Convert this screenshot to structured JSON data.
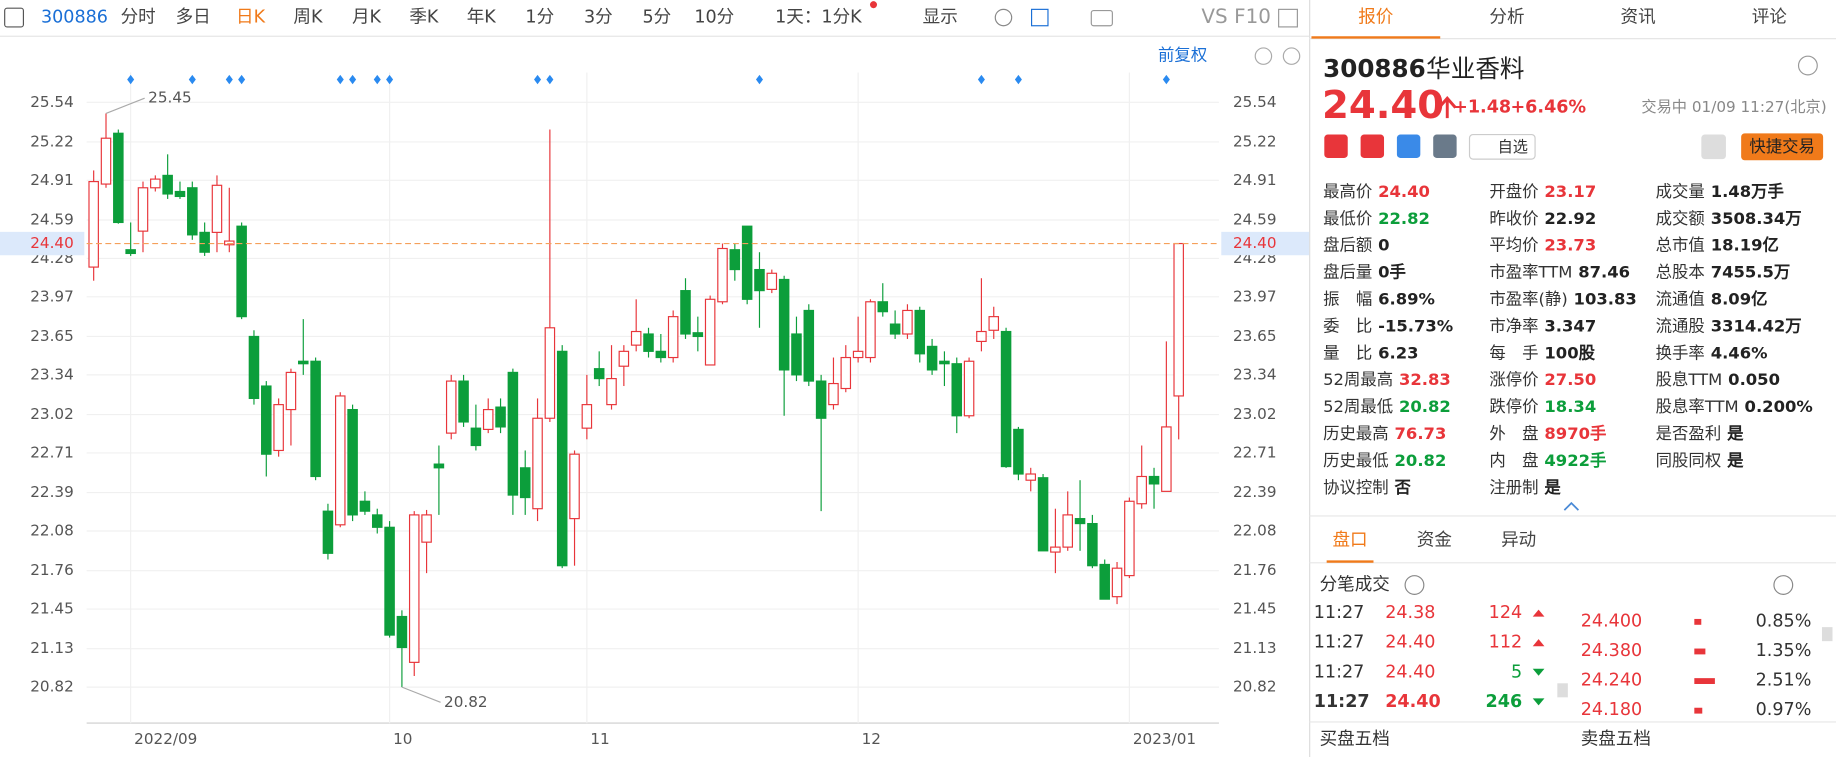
{
  "toolbar": {
    "code": "300886",
    "periods": [
      "分时",
      "多日",
      "日K",
      "周K",
      "月K",
      "季K",
      "年K",
      "1分",
      "3分",
      "5分",
      "10分"
    ],
    "active_period": 2,
    "interval": "1天：1分K",
    "display": "显示",
    "vs": "VS",
    "f10": "F10",
    "adjust": "前复权"
  },
  "chart_data": {
    "type": "candlestick",
    "categories": [
      null,
      null,
      null,
      "2022/09",
      null,
      null,
      null,
      null,
      null,
      null,
      null,
      null,
      null,
      null,
      null,
      null,
      null,
      null,
      null,
      null,
      null,
      null,
      null,
      null,
      "10",
      null,
      null,
      null,
      null,
      null,
      null,
      null,
      null,
      null,
      null,
      null,
      null,
      null,
      null,
      null,
      "11",
      null,
      null,
      null,
      null,
      null,
      null,
      null,
      null,
      null,
      null,
      null,
      null,
      null,
      null,
      null,
      null,
      null,
      null,
      null,
      null,
      null,
      "12",
      null,
      null,
      null,
      null,
      null,
      null,
      null,
      null,
      null,
      null,
      null,
      null,
      null,
      null,
      null,
      null,
      null,
      null,
      null,
      null,
      null,
      "2023/01",
      null,
      null,
      null,
      null
    ],
    "open": [
      24.21,
      24.88,
      25.29,
      24.35,
      24.5,
      24.85,
      24.95,
      24.82,
      24.85,
      24.49,
      24.49,
      24.39,
      24.54,
      23.65,
      23.25,
      22.73,
      23.06,
      23.45,
      23.45,
      22.24,
      22.13,
      23.06,
      22.32,
      22.21,
      22.11,
      21.39,
      21.02,
      21.99,
      22.62,
      22.87,
      23.29,
      22.91,
      22.9,
      23.08,
      23.36,
      22.59,
      22.26,
      22.99,
      23.53,
      22.18,
      22.91,
      23.39,
      23.1,
      23.41,
      23.58,
      23.67,
      23.53,
      23.48,
      24.02,
      23.68,
      23.42,
      23.93,
      24.35,
      24.54,
      24.19,
      24.03,
      24.11,
      23.67,
      23.86,
      23.29,
      23.1,
      23.23,
      23.48,
      23.48,
      23.93,
      23.75,
      23.67,
      23.86,
      23.57,
      23.45,
      23.43,
      23.01,
      23.61,
      23.7,
      23.69,
      22.9,
      22.49,
      22.51,
      21.91,
      21.95,
      22.18,
      22.14,
      21.81,
      21.55,
      21.72,
      22.3,
      22.52,
      22.4,
      23.17
    ],
    "high": [
      24.99,
      25.45,
      25.32,
      24.57,
      24.9,
      24.95,
      25.12,
      24.9,
      24.9,
      24.57,
      24.95,
      24.85,
      24.57,
      23.7,
      23.29,
      23.15,
      23.39,
      23.79,
      23.48,
      22.3,
      23.2,
      23.1,
      22.4,
      22.26,
      22.16,
      21.44,
      22.24,
      22.25,
      22.77,
      23.34,
      23.34,
      23.1,
      23.15,
      23.15,
      23.39,
      22.73,
      23.15,
      25.32,
      23.58,
      22.73,
      23.34,
      23.53,
      23.58,
      23.58,
      23.95,
      23.72,
      23.67,
      23.86,
      24.12,
      23.81,
      23.98,
      24.4,
      24.4,
      24.54,
      24.33,
      24.19,
      24.14,
      23.81,
      23.91,
      23.34,
      23.48,
      23.58,
      23.81,
      23.95,
      24.08,
      23.86,
      23.91,
      23.89,
      23.63,
      23.53,
      23.48,
      23.48,
      24.12,
      23.89,
      23.72,
      22.92,
      22.59,
      22.54,
      22.26,
      22.4,
      22.49,
      22.21,
      21.85,
      21.83,
      22.35,
      22.77,
      22.59,
      23.61,
      24.4
    ],
    "low": [
      24.1,
      24.85,
      24.56,
      24.3,
      24.33,
      24.82,
      24.76,
      24.76,
      24.43,
      24.3,
      24.33,
      24.33,
      23.79,
      23.1,
      22.52,
      22.68,
      22.77,
      23.34,
      22.49,
      21.85,
      22.11,
      22.16,
      22.21,
      22.06,
      21.22,
      20.82,
      20.91,
      21.74,
      22.21,
      22.82,
      22.92,
      22.73,
      22.87,
      22.87,
      22.21,
      22.21,
      22.16,
      22.96,
      21.78,
      21.8,
      22.82,
      23.25,
      23.06,
      23.25,
      23.53,
      23.48,
      23.44,
      23.44,
      23.63,
      23.53,
      23.42,
      23.91,
      24.1,
      23.91,
      23.72,
      24.0,
      23.01,
      23.29,
      23.25,
      22.24,
      23.06,
      23.2,
      23.44,
      23.44,
      23.81,
      23.63,
      23.63,
      23.44,
      23.34,
      23.25,
      22.87,
      22.99,
      23.53,
      23.63,
      22.59,
      22.49,
      22.4,
      21.92,
      21.74,
      21.92,
      21.92,
      21.78,
      21.53,
      21.49,
      21.7,
      22.26,
      22.26,
      22.4,
      22.82
    ],
    "close": [
      24.9,
      25.25,
      24.57,
      24.32,
      24.85,
      24.92,
      24.8,
      24.78,
      24.47,
      24.33,
      24.87,
      24.42,
      23.81,
      23.15,
      22.7,
      23.1,
      23.36,
      23.43,
      22.52,
      21.9,
      23.17,
      22.21,
      22.24,
      22.11,
      21.24,
      21.14,
      22.21,
      22.21,
      22.59,
      23.29,
      22.96,
      22.77,
      23.06,
      22.92,
      22.37,
      22.35,
      22.99,
      23.72,
      21.8,
      22.7,
      23.1,
      23.31,
      23.31,
      23.53,
      23.69,
      23.53,
      23.48,
      23.81,
      23.67,
      23.65,
      23.95,
      24.36,
      24.19,
      23.95,
      24.02,
      24.16,
      23.38,
      23.34,
      23.29,
      22.99,
      23.27,
      23.48,
      23.53,
      23.93,
      23.85,
      23.67,
      23.86,
      23.51,
      23.38,
      23.43,
      23.01,
      23.45,
      23.69,
      23.81,
      22.6,
      22.54,
      22.54,
      21.92,
      21.95,
      22.21,
      22.14,
      21.8,
      21.53,
      21.78,
      22.32,
      22.52,
      22.46,
      22.92,
      24.4
    ],
    "up_color": "#e8353a",
    "down_color": "#0c9e3b",
    "ylim": [
      20.53,
      25.78
    ],
    "yticks": [
      25.54,
      25.22,
      24.91,
      24.59,
      24.28,
      23.97,
      23.65,
      23.34,
      23.02,
      22.71,
      22.39,
      22.08,
      21.76,
      21.45,
      21.13,
      20.82
    ],
    "grid": true,
    "last_price": {
      "value": 24.4,
      "label": "24.40"
    },
    "annotations": [
      {
        "index": 1,
        "value": 25.45
      },
      {
        "index": 25,
        "value": 20.82
      }
    ],
    "event_markers": [
      3,
      8,
      11,
      12,
      20,
      21,
      23,
      24,
      36,
      37,
      54,
      72,
      75,
      87
    ]
  },
  "quote": {
    "tabs": [
      "报价",
      "分析",
      "资讯",
      "评论"
    ],
    "active_tab": 0,
    "code": "300886",
    "name": "华业香料",
    "price": "24.40",
    "change": "+1.48",
    "change_pct": "+6.46%",
    "status": "交易中 01/09 11:27(北京)",
    "watch": "自选",
    "trade": "快捷交易",
    "stats": [
      [
        {
          "label": "最高价",
          "value": "24.40",
          "color": "#e8353a"
        },
        {
          "label": "最低价",
          "value": "22.82",
          "color": "#0c9e3b"
        },
        {
          "label": "盘后额",
          "value": "0"
        },
        {
          "label": "盘后量",
          "value": "0手"
        },
        {
          "label": "振　幅",
          "value": "6.89%"
        },
        {
          "label": "委　比",
          "value": "-15.73%"
        },
        {
          "label": "量　比",
          "value": "6.23"
        },
        {
          "label": "52周最高",
          "value": "32.83",
          "color": "#e8353a"
        },
        {
          "label": "52周最低",
          "value": "20.82",
          "color": "#0c9e3b"
        },
        {
          "label": "历史最高",
          "value": "76.73",
          "color": "#e8353a"
        },
        {
          "label": "历史最低",
          "value": "20.82",
          "color": "#0c9e3b"
        },
        {
          "label": "协议控制",
          "value": "否"
        }
      ],
      [
        {
          "label": "开盘价",
          "value": "23.17",
          "color": "#e8353a"
        },
        {
          "label": "昨收价",
          "value": "22.92"
        },
        {
          "label": "平均价",
          "value": "23.73",
          "color": "#e8353a"
        },
        {
          "label": "市盈率TTM",
          "value": "87.46"
        },
        {
          "label": "市盈率(静)",
          "value": "103.83"
        },
        {
          "label": "市净率",
          "value": "3.347"
        },
        {
          "label": "每　手",
          "value": "100股"
        },
        {
          "label": "涨停价",
          "value": "27.50",
          "color": "#e8353a"
        },
        {
          "label": "跌停价",
          "value": "18.34",
          "color": "#0c9e3b"
        },
        {
          "label": "外　盘",
          "value": "8970手",
          "color": "#e8353a"
        },
        {
          "label": "内　盘",
          "value": "4922手",
          "color": "#0c9e3b"
        },
        {
          "label": "注册制",
          "value": "是"
        }
      ],
      [
        {
          "label": "成交量",
          "value": "1.48万手"
        },
        {
          "label": "成交额",
          "value": "3508.34万"
        },
        {
          "label": "总市值",
          "value": "18.19亿"
        },
        {
          "label": "总股本",
          "value": "7455.5万"
        },
        {
          "label": "流通值",
          "value": "8.09亿"
        },
        {
          "label": "流通股",
          "value": "3314.42万"
        },
        {
          "label": "换手率",
          "value": "4.46%"
        },
        {
          "label": "股息TTM",
          "value": "0.050"
        },
        {
          "label": "股息率TTM",
          "value": "0.200%"
        },
        {
          "label": "是否盈利",
          "value": "是"
        },
        {
          "label": "同股同权",
          "value": "是"
        }
      ]
    ],
    "sub_tabs": [
      "盘口",
      "资金",
      "异动"
    ],
    "active_sub_tab": 0,
    "trades_title": "分笔成交",
    "trades": [
      {
        "time": "11:27",
        "price": "24.38",
        "volume": "124",
        "side": "buy"
      },
      {
        "time": "11:27",
        "price": "24.40",
        "volume": "112",
        "side": "buy"
      },
      {
        "time": "11:27",
        "price": "24.40",
        "volume": "5",
        "side": "sell"
      },
      {
        "time": "11:27",
        "price": "24.40",
        "volume": "246",
        "side": "sell"
      }
    ],
    "levels": [
      {
        "price": "24.400",
        "pct": "0.85%"
      },
      {
        "price": "24.380",
        "pct": "1.35%"
      },
      {
        "price": "24.240",
        "pct": "2.51%"
      },
      {
        "price": "24.180",
        "pct": "0.97%"
      }
    ],
    "bid_title": "买盘五档",
    "ask_title": "卖盘五档"
  }
}
